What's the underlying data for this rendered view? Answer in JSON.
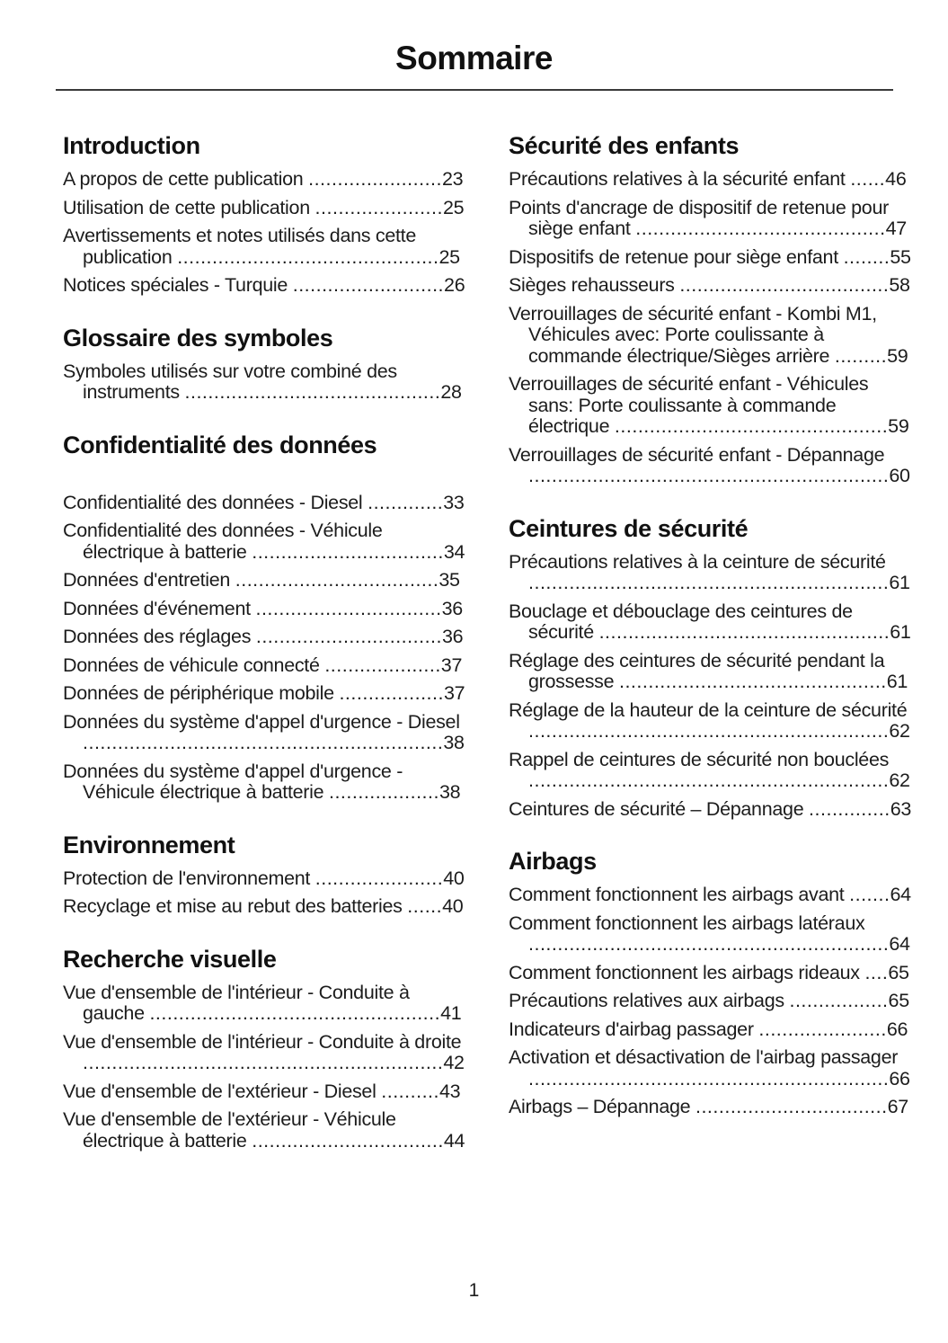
{
  "page": {
    "title": "Sommaire",
    "footer_page_number": "1"
  },
  "toc": {
    "columns": [
      {
        "sections": [
          {
            "heading": "Introduction",
            "entries": [
              {
                "text": "A propos de cette publication",
                "page": "23"
              },
              {
                "text": "Utilisation de cette publication",
                "page": "25"
              },
              {
                "text": "Avertissements et notes utilisés dans cette publication",
                "page": "25"
              },
              {
                "text": "Notices spéciales - Turquie",
                "page": "26"
              }
            ]
          },
          {
            "heading": "Glossaire des symboles",
            "entries": [
              {
                "text": "Symboles utilisés sur votre combiné des instruments",
                "page": "28"
              }
            ]
          },
          {
            "heading": "Confidentialité des données",
            "gap_before_entries": true,
            "entries": [
              {
                "text": "Confidentialité des données - Diesel",
                "page": "33"
              },
              {
                "text": "Confidentialité des données - Véhicule électrique à batterie",
                "page": "34"
              },
              {
                "text": "Données d'entretien",
                "page": "35"
              },
              {
                "text": "Données d'événement",
                "page": "36"
              },
              {
                "text": "Données des réglages",
                "page": "36"
              },
              {
                "text": "Données de véhicule connecté",
                "page": "37"
              },
              {
                "text": "Données de périphérique mobile",
                "page": "37"
              },
              {
                "text": "Données du système d'appel d'urgence - Diesel",
                "page": "38"
              },
              {
                "text": "Données du système d'appel d'urgence - Véhicule électrique à batterie",
                "page": "38"
              }
            ]
          },
          {
            "heading": "Environnement",
            "entries": [
              {
                "text": "Protection de l'environnement",
                "page": "40"
              },
              {
                "text": "Recyclage et mise au rebut des batteries",
                "page": "40"
              }
            ]
          },
          {
            "heading": "Recherche visuelle",
            "entries": [
              {
                "text": "Vue d'ensemble de l'intérieur - Conduite à gauche",
                "page": "41"
              },
              {
                "text": "Vue d'ensemble de l'intérieur - Conduite à droite",
                "page": "42"
              },
              {
                "text": "Vue d'ensemble de l'extérieur - Diesel",
                "page": "43"
              },
              {
                "text": "Vue d'ensemble de l'extérieur - Véhicule électrique à batterie",
                "page": "44"
              }
            ]
          }
        ]
      },
      {
        "sections": [
          {
            "heading": "Sécurité des enfants",
            "entries": [
              {
                "text": "Précautions relatives à la sécurité enfant",
                "page": "46"
              },
              {
                "text": "Points d'ancrage de dispositif de retenue pour siège enfant",
                "page": "47"
              },
              {
                "text": "Dispositifs de retenue pour siège enfant",
                "page": "55"
              },
              {
                "text": "Sièges rehausseurs",
                "page": "58"
              },
              {
                "text": "Verrouillages de sécurité enfant - Kombi M1, Véhicules avec: Porte coulissante à commande électrique/Sièges arrière",
                "page": "59"
              },
              {
                "text": "Verrouillages de sécurité enfant - Véhicules sans: Porte coulissante à commande électrique",
                "page": "59"
              },
              {
                "text": "Verrouillages de sécurité enfant - Dépannage",
                "page": "60"
              }
            ]
          },
          {
            "heading": "Ceintures de sécurité",
            "entries": [
              {
                "text": "Précautions relatives à la ceinture de sécurité",
                "page": "61"
              },
              {
                "text": "Bouclage et débouclage des ceintures de sécurité",
                "page": "61"
              },
              {
                "text": "Réglage des ceintures de sécurité pendant la grossesse",
                "page": "61"
              },
              {
                "text": "Réglage de la hauteur de la ceinture de sécurité",
                "page": "62"
              },
              {
                "text": "Rappel de ceintures de sécurité non bouclées",
                "page": "62"
              },
              {
                "text": "Ceintures de sécurité – Dépannage",
                "page": "63"
              }
            ]
          },
          {
            "heading": "Airbags",
            "entries": [
              {
                "text": "Comment fonctionnent les airbags avant",
                "page": "64"
              },
              {
                "text": "Comment fonctionnent les airbags latéraux",
                "page": "64"
              },
              {
                "text": "Comment fonctionnent les airbags rideaux",
                "page": "65"
              },
              {
                "text": "Précautions relatives aux airbags",
                "page": "65"
              },
              {
                "text": "Indicateurs d'airbag passager",
                "page": "66"
              },
              {
                "text": "Activation et désactivation de l'airbag passager",
                "page": "66"
              },
              {
                "text": "Airbags – Dépannage",
                "page": "67"
              }
            ]
          }
        ]
      }
    ]
  }
}
